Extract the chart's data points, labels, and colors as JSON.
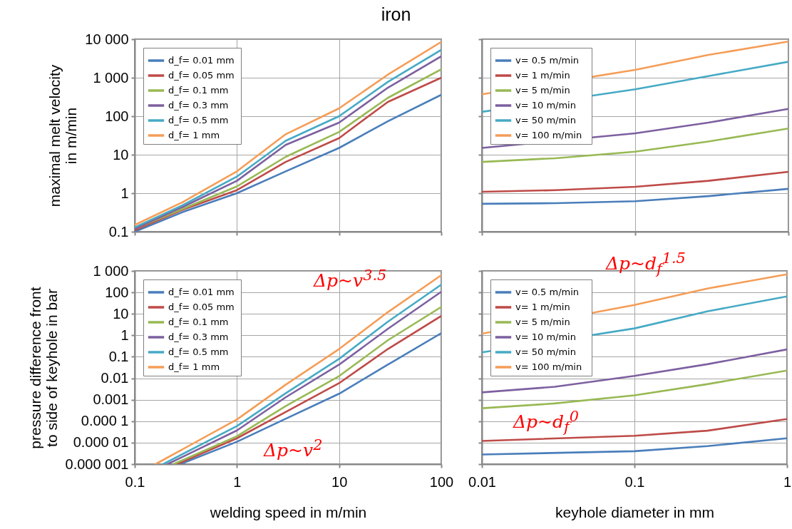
{
  "chart_data": [
    {
      "type": "line",
      "title": "iron",
      "ylabel": "maximal melt velocity in m/min",
      "x": [
        0.1,
        0.3,
        1,
        3,
        10,
        30,
        100
      ],
      "xlim": [
        0.1,
        100
      ],
      "xticks": [
        0.1,
        1,
        10,
        100
      ],
      "ylim": [
        0.1,
        10000
      ],
      "yticks": [
        0.1,
        1,
        10,
        100,
        {
          "value": 1000,
          "label": "1 000"
        },
        {
          "value": 10000,
          "label": "10 000"
        }
      ],
      "log": "xy",
      "grid": true,
      "legend": "top left",
      "tick_labels": "y",
      "series": [
        {
          "name": "d_f= 0.01  mm",
          "color": "#4a7ebb",
          "values": [
            0.1,
            0.33,
            1.0,
            3.7,
            15,
            74,
            360
          ]
        },
        {
          "name": "d_f= 0.05  mm",
          "color": "#be4b48",
          "values": [
            0.11,
            0.38,
            1.2,
            6.5,
            27,
            235,
            1000
          ]
        },
        {
          "name": "d_f= 0.1  mm",
          "color": "#98b954",
          "values": [
            0.12,
            0.4,
            1.5,
            8.8,
            39,
            300,
            1650
          ]
        },
        {
          "name": "d_f= 0.3  mm",
          "color": "#7d60a0",
          "values": [
            0.12,
            0.45,
            2.1,
            18,
            68,
            550,
            3600
          ]
        },
        {
          "name": "d_f= 0.5  mm",
          "color": "#46aac5",
          "values": [
            0.13,
            0.5,
            2.7,
            23,
            100,
            780,
            5300
          ]
        },
        {
          "name": "d_f= 1  mm",
          "color": "#f59d56",
          "values": [
            0.15,
            0.6,
            3.7,
            34,
            160,
            1200,
            8500
          ]
        }
      ]
    },
    {
      "type": "line",
      "xlim": [
        0.01,
        1
      ],
      "xticks": [
        0.01,
        0.1,
        1
      ],
      "ylim": [
        0.1,
        10000
      ],
      "yticks": [
        0.1,
        1,
        10,
        100,
        1000,
        10000
      ],
      "log": "xy",
      "grid": true,
      "legend": "top left",
      "tick_labels": false,
      "series": [
        {
          "name": "v=  0.5  m/min",
          "color": "#4a7ebb",
          "x": [
            0.01,
            0.03,
            0.1,
            0.3,
            1
          ],
          "values": [
            0.53,
            0.55,
            0.62,
            0.84,
            1.3
          ]
        },
        {
          "name": "v=  1  m/min",
          "color": "#be4b48",
          "x": [
            0.01,
            0.03,
            0.1,
            0.3,
            1
          ],
          "values": [
            1.09,
            1.2,
            1.47,
            2.1,
            3.6
          ]
        },
        {
          "name": "v=  5  m/min",
          "color": "#98b954",
          "x": [
            0.01,
            0.03,
            0.1,
            0.3,
            1
          ],
          "values": [
            6.5,
            8.1,
            12,
            22,
            48
          ]
        },
        {
          "name": "v=  10  m/min",
          "color": "#7d60a0",
          "x": [
            0.01,
            0.1,
            0.3,
            1
          ],
          "values": [
            15,
            36,
            68,
            155
          ]
        },
        {
          "name": "v=  50  m/min",
          "color": "#46aac5",
          "x": [
            0.01,
            0.1,
            0.3,
            1
          ],
          "values": [
            130,
            500,
            1100,
            2600
          ]
        },
        {
          "name": "v=  100  m/min",
          "color": "#f59d56",
          "x": [
            0.01,
            0.1,
            0.3,
            1
          ],
          "values": [
            370,
            1600,
            3900,
            8700
          ]
        }
      ]
    },
    {
      "type": "line",
      "xlabel": "welding speed in m/min",
      "ylabel": "pressure difference front to side of keyhole in bar",
      "xlim": [
        0.1,
        100
      ],
      "xticks": [
        0.1,
        1,
        10,
        100
      ],
      "ylim": [
        1e-06,
        1000
      ],
      "yticks": [
        {
          "value": 1e-06,
          "label": "0.000 001"
        },
        {
          "value": 1e-05,
          "label": "0.000 01"
        },
        {
          "value": 0.0001,
          "label": "0.000 1"
        },
        0.001,
        0.01,
        0.1,
        1,
        10,
        100,
        {
          "value": 1000,
          "label": "1 000"
        }
      ],
      "log": "xy",
      "grid": true,
      "legend": "top left",
      "annotations": [
        "Δp~v$^{3.5}$",
        "Δp~v$^{2}$"
      ],
      "series": [
        {
          "name": "d_f= 0.01  mm",
          "color": "#4a7ebb",
          "x": [
            0.28,
            1,
            3,
            10,
            30,
            100
          ],
          "values": [
            1e-06,
            1.1e-05,
            0.00013,
            0.0019,
            0.043,
            1.26
          ]
        },
        {
          "name": "d_f= 0.05  mm",
          "color": "#be4b48",
          "x": [
            0.26,
            1,
            3,
            10,
            30,
            100
          ],
          "values": [
            1e-06,
            1.6e-05,
            0.00027,
            0.0059,
            0.23,
            8
          ]
        },
        {
          "name": "d_f= 0.1  mm",
          "color": "#98b954",
          "x": [
            0.24,
            1,
            3,
            10,
            30,
            100
          ],
          "values": [
            1e-06,
            2e-05,
            0.0005,
            0.0126,
            0.59,
            21
          ]
        },
        {
          "name": "d_f= 0.3  mm",
          "color": "#7d60a0",
          "x": [
            0.21,
            1,
            3,
            10,
            30,
            100
          ],
          "values": [
            1e-06,
            3.7e-05,
            0.0013,
            0.043,
            2,
            107
          ]
        },
        {
          "name": "d_f= 0.5  mm",
          "color": "#46aac5",
          "x": [
            0.19,
            1,
            3,
            10,
            30,
            100
          ],
          "values": [
            1e-06,
            5.9e-05,
            0.002,
            0.08,
            4.3,
            230
          ]
        },
        {
          "name": "d_f= 1  mm",
          "color": "#f59d56",
          "x": [
            0.16,
            1,
            3,
            10,
            30,
            100
          ],
          "values": [
            1e-06,
            0.00012,
            0.005,
            0.23,
            12,
            630
          ]
        }
      ]
    },
    {
      "type": "line",
      "xlabel": "keyhole diameter in mm",
      "xlim": [
        0.01,
        1
      ],
      "xticks": [
        0.01,
        0.1,
        1
      ],
      "ylim": [
        1e-06,
        1000
      ],
      "yticks": [
        1e-06,
        1e-05,
        0.0001,
        0.001,
        0.01,
        0.1,
        1,
        10,
        100,
        1000
      ],
      "log": "xy",
      "grid": true,
      "legend": "top left",
      "tick_labels": "x",
      "annotations": [
        "Δp~d$_{f}$$^{1.5}$",
        "Δp~d$_{f}$$^{0}$"
      ],
      "series": [
        {
          "name": "v=  0.5  m/min",
          "color": "#4a7ebb",
          "x": [
            0.01,
            0.1,
            0.3,
            1
          ],
          "values": [
            2.8e-06,
            4e-06,
            6.9e-06,
            1.6e-05
          ]
        },
        {
          "name": "v=  1  m/min",
          "color": "#be4b48",
          "x": [
            0.01,
            0.1,
            0.3,
            1
          ],
          "values": [
            1.2e-05,
            2.1e-05,
            3.6e-05,
            0.000126
          ]
        },
        {
          "name": "v=  5  m/min",
          "color": "#98b954",
          "x": [
            0.01,
            0.03,
            0.1,
            0.3,
            1
          ],
          "values": [
            0.0004,
            0.00067,
            0.0016,
            0.0053,
            0.023
          ]
        },
        {
          "name": "v=  10  m/min",
          "color": "#7d60a0",
          "x": [
            0.01,
            0.03,
            0.1,
            0.3,
            1
          ],
          "values": [
            0.0022,
            0.004,
            0.0128,
            0.045,
            0.22
          ]
        },
        {
          "name": "v=  50  m/min",
          "color": "#46aac5",
          "x": [
            0.01,
            0.1,
            0.3,
            1
          ],
          "values": [
            0.16,
            2.1,
            13,
            65
          ]
        },
        {
          "name": "v=  100  m/min",
          "color": "#f59d56",
          "x": [
            0.01,
            0.1,
            0.3,
            1
          ],
          "values": [
            1.2,
            26,
            150,
            700
          ]
        }
      ]
    }
  ]
}
